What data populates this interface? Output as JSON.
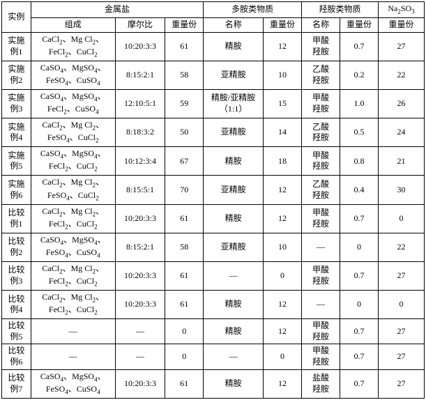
{
  "headers": {
    "example": "实例",
    "metal_salt": "金属盐",
    "polyamine": "多胺类物质",
    "hydroxylamine": "羟胺类物质",
    "na2so3": "Na₂SO₃",
    "composition": "组成",
    "molar_ratio": "摩尔比",
    "weight_parts": "重量份",
    "name": "名称"
  },
  "rows": [
    {
      "id": "实施例1",
      "comp": "CaCl₂、Mg Cl₂、FeCl₂、CuCl₂",
      "ratio": "10:20:3:3",
      "w1": "61",
      "pname": "精胺",
      "w2": "12",
      "hname": "甲酸羟胺",
      "w3": "0.7",
      "w4": "27"
    },
    {
      "id": "实施例2",
      "comp": "CaSO₄、MgSO₄、FeSO₄、CuSO₄",
      "ratio": "8:15:2:1",
      "w1": "58",
      "pname": "亚精胺",
      "w2": "10",
      "hname": "乙酸羟胺",
      "w3": "0.2",
      "w4": "22"
    },
    {
      "id": "实施例3",
      "comp": "CaSO₄、MgSO₄、FeCl₂、CuSO₄",
      "ratio": "12:10:5:1",
      "w1": "59",
      "pname": "精胺/亚精胺（1:1）",
      "w2": "15",
      "hname": "甲酸羟胺",
      "w3": "1.0",
      "w4": "26"
    },
    {
      "id": "实施例4",
      "comp": "CaCl₂、Mg Cl₂、FeSO₄、CuCl₂",
      "ratio": "8:18:3:2",
      "w1": "50",
      "pname": "亚精胺",
      "w2": "14",
      "hname": "乙酸羟胺",
      "w3": "0.5",
      "w4": "24"
    },
    {
      "id": "实施例5",
      "comp": "CaSO₄、MgSO₄、FeCl₂、CuCl₂",
      "ratio": "10:12:3:4",
      "w1": "67",
      "pname": "精胺",
      "w2": "18",
      "hname": "甲酸羟胺",
      "w3": "0.8",
      "w4": "21"
    },
    {
      "id": "实施例6",
      "comp": "CaCl₂、Mg Cl₂、FeSO₄、CuCl₂",
      "ratio": "8:15:5:1",
      "w1": "70",
      "pname": "亚精胺",
      "w2": "12",
      "hname": "乙酸羟胺",
      "w3": "0.4",
      "w4": "30"
    },
    {
      "id": "比较例1",
      "comp": "CaCl₂、Mg Cl₂、FeCl₂、CuCl₂",
      "ratio": "10:20:3:3",
      "w1": "61",
      "pname": "精胺",
      "w2": "12",
      "hname": "甲酸羟胺",
      "w3": "0.7",
      "w4": "0"
    },
    {
      "id": "比较例2",
      "comp": "CaSO₄、MgSO₄、FeSO₄、CuSO₄",
      "ratio": "8:15:2:1",
      "w1": "58",
      "pname": "亚精胺",
      "w2": "10",
      "hname": "—",
      "w3": "0",
      "w4": "22"
    },
    {
      "id": "比较例3",
      "comp": "CaCl₂、Mg Cl₂、FeCl₂、CuCl₂",
      "ratio": "10:20:3:3",
      "w1": "61",
      "pname": "—",
      "w2": "0",
      "hname": "甲酸羟胺",
      "w3": "0.7",
      "w4": "27"
    },
    {
      "id": "比较例4",
      "comp": "CaCl₂、Mg Cl₂、FeCl₂、CuCl₂",
      "ratio": "10:20:3:3",
      "w1": "61",
      "pname": "精胺",
      "w2": "12",
      "hname": "—",
      "w3": "0",
      "w4": "0"
    },
    {
      "id": "比较例5",
      "comp": "—",
      "ratio": "—",
      "w1": "0",
      "pname": "精胺",
      "w2": "12",
      "hname": "甲酸羟胺",
      "w3": "0.7",
      "w4": "27"
    },
    {
      "id": "比较例6",
      "comp": "—",
      "ratio": "—",
      "w1": "0",
      "pname": "—",
      "w2": "0",
      "hname": "甲酸羟胺",
      "w3": "0.7",
      "w4": "27"
    },
    {
      "id": "比较例7",
      "comp": "CaSO₄、MgSO₄、FeSO₄、CuSO₄",
      "ratio": "10:20:3:3",
      "w1": "61",
      "pname": "精胺",
      "w2": "12",
      "hname": "盐酸羟胺",
      "w3": "0.7",
      "w4": "27"
    }
  ]
}
